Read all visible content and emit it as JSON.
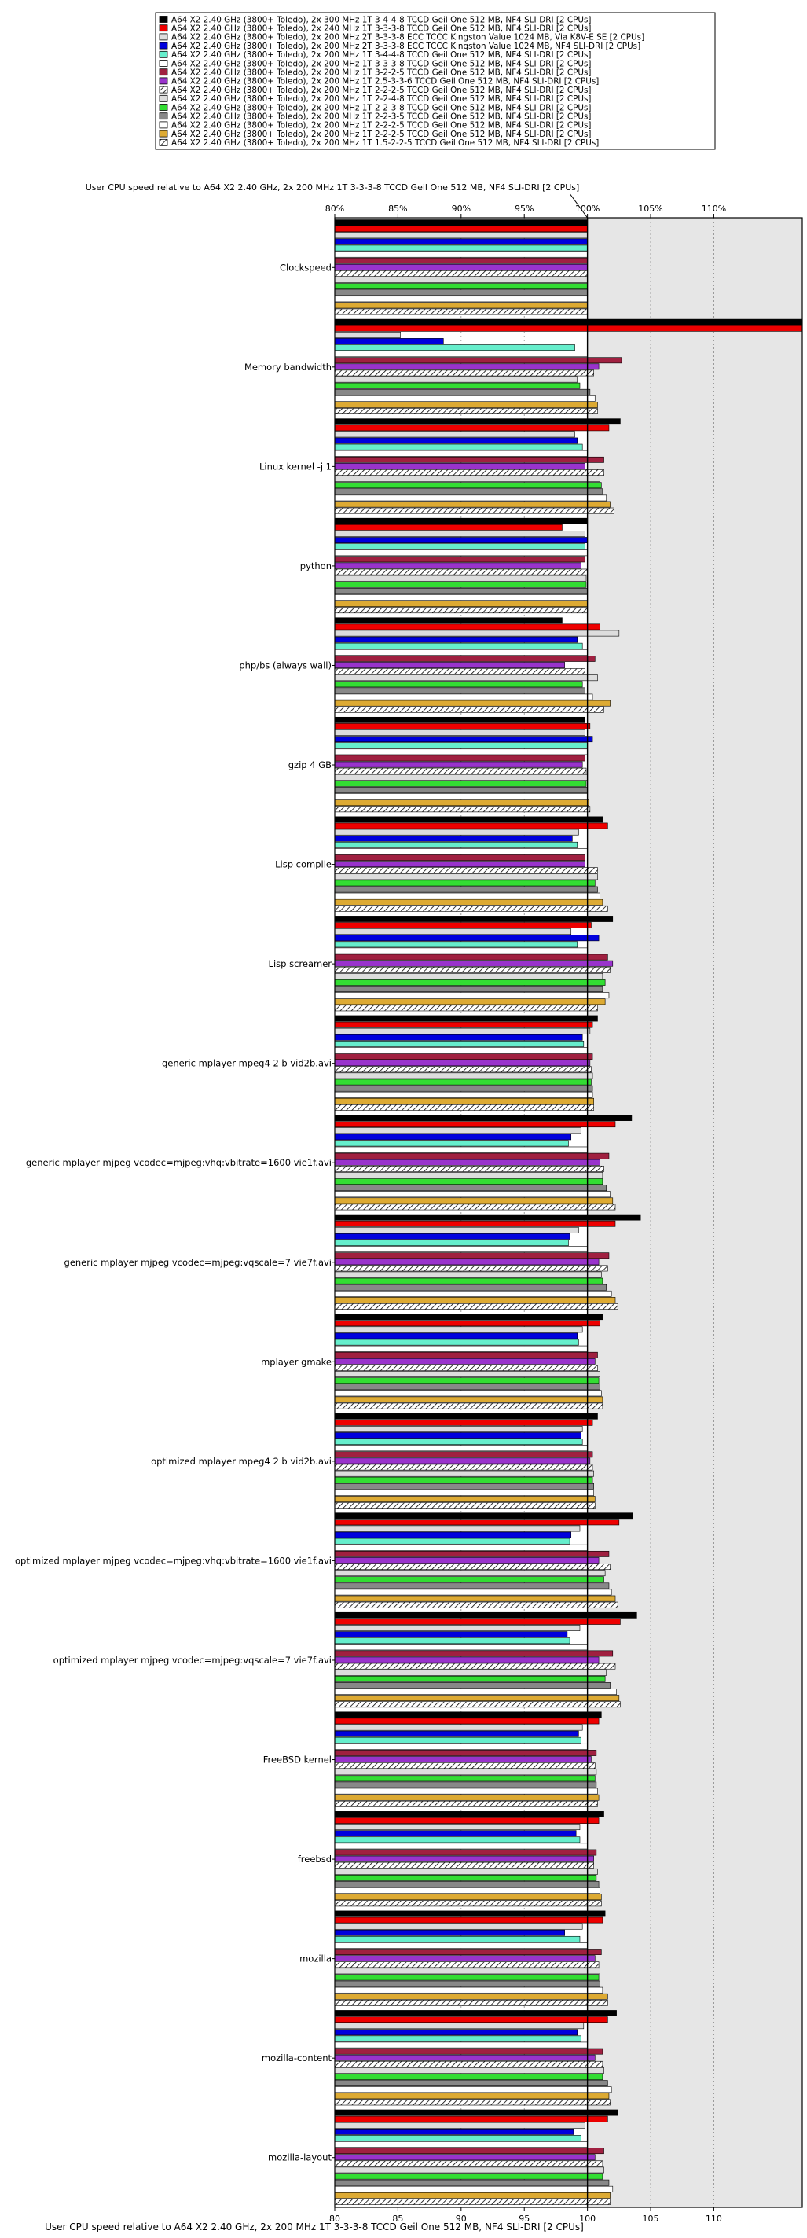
{
  "chart_data": {
    "type": "bar",
    "orientation": "horizontal",
    "title": "User CPU speed relative to A64 X2 2.40 GHz, 2x 200 MHz 1T 3-3-3-8 TCCD Geil One 512 MB, NF4 SLI-DRI [2 CPUs]",
    "xlabel": "User CPU speed relative to A64 X2 2.40 GHz, 2x 200 MHz 1T 3-3-3-8 TCCD Geil One 512 MB, NF4 SLI-DRI [2 CPUs]",
    "top_ticks": [
      "80%",
      "85%",
      "90%",
      "95%",
      "100%",
      "105%",
      "110%"
    ],
    "bottom_ticks": [
      "80",
      "85",
      "90",
      "95",
      "100",
      "105",
      "110"
    ],
    "tick_values": [
      80,
      85,
      90,
      95,
      100,
      105,
      110
    ],
    "xlim": [
      80,
      117
    ],
    "reference_value": 100,
    "grid": true,
    "legend_position": "top",
    "series": [
      {
        "name": "A64 X2 2.40 GHz (3800+ Toledo), 2x 300 MHz 1T 3-4-4-8 TCCD Geil One 512 MB, NF4 SLI-DRI [2 CPUs]",
        "color": "#000000",
        "pattern": "solid",
        "values": [
          100,
          117,
          102.6,
          100,
          98,
          99.8,
          101.2,
          102,
          100.8,
          103.5,
          104.2,
          101.2,
          100.8,
          103.6,
          103.9,
          101.1,
          101.3,
          101.4,
          102.3,
          102.4
        ]
      },
      {
        "name": "A64 X2 2.40 GHz (3800+ Toledo), 2x 240 MHz 1T 3-3-3-8 TCCD Geil One 512 MB, NF4 SLI-DRI [2 CPUs]",
        "color": "#ee0000",
        "pattern": "solid",
        "values": [
          100,
          117,
          101.7,
          98,
          101,
          100.2,
          101.6,
          100.3,
          100.4,
          102.2,
          102.2,
          101,
          100.4,
          102.5,
          102.6,
          100.9,
          100.9,
          101.2,
          101.6,
          101.6
        ]
      },
      {
        "name": "A64 X2 2.40 GHz (3800+ Toledo), 2x 200 MHz 2T 3-3-3-8 ECC TCCC Kingston Value 1024 MB, Via K8V-E SE [2 CPUs]",
        "color": "#dddddd",
        "pattern": "solid",
        "values": [
          100,
          85.2,
          99,
          99.8,
          102.5,
          99.8,
          99.3,
          98.7,
          100.2,
          99.5,
          99.3,
          99.6,
          99.6,
          99.4,
          99.4,
          99.6,
          99.4,
          99.6,
          99.7,
          99.8
        ]
      },
      {
        "name": "A64 X2 2.40 GHz (3800+ Toledo), 2x 200 MHz 2T 3-3-3-8 ECC TCCC Kingston Value 1024 MB, NF4 SLI-DRI [2 CPUs]",
        "color": "#0000dd",
        "pattern": "solid",
        "values": [
          100,
          88.6,
          99.2,
          100,
          99.2,
          100.4,
          98.8,
          100.9,
          99.6,
          98.7,
          98.6,
          99.2,
          99.5,
          98.7,
          98.4,
          99.3,
          99.1,
          98.2,
          99.2,
          98.9
        ]
      },
      {
        "name": "A64 X2 2.40 GHz (3800+ Toledo), 2x 200 MHz 1T 3-4-4-8 TCCD Geil One 512 MB, NF4 SLI-DRI [2 CPUs]",
        "color": "#66eecc",
        "pattern": "solid",
        "values": [
          100,
          99,
          99.6,
          99.8,
          99.6,
          100,
          99.2,
          99.2,
          99.7,
          98.5,
          98.5,
          99.3,
          99.6,
          98.6,
          98.6,
          99.5,
          99.4,
          99.4,
          99.5,
          99.5
        ]
      },
      {
        "name": "A64 X2 2.40 GHz (3800+ Toledo), 2x 200 MHz 1T 3-3-3-8 TCCD Geil One 512 MB, NF4 SLI-DRI [2 CPUs]",
        "color": "#ffffff",
        "pattern": "solid",
        "values": [
          100,
          100,
          100,
          100,
          100,
          100,
          100,
          100,
          100,
          100,
          100,
          100,
          100,
          100,
          100,
          100,
          100,
          100,
          100,
          100
        ]
      },
      {
        "name": "A64 X2 2.40 GHz (3800+ Toledo), 2x 200 MHz 1T 3-2-2-5 TCCD Geil One 512 MB, NF4 SLI-DRI [2 CPUs]",
        "color": "#a02040",
        "pattern": "solid",
        "values": [
          100,
          102.7,
          101.3,
          99.8,
          100.6,
          99.8,
          99.8,
          101.6,
          100.4,
          101.7,
          101.7,
          100.8,
          100.4,
          101.7,
          102,
          100.7,
          100.7,
          101.1,
          101.2,
          101.3
        ]
      },
      {
        "name": "A64 X2 2.40 GHz (3800+ Toledo), 2x 200 MHz 1T 2.5-3-3-6 TCCD Geil One 512 MB, NF4 SLI-DRI [2 CPUs]",
        "color": "#9933cc",
        "pattern": "solid",
        "values": [
          100,
          100.9,
          99.8,
          99.5,
          98.2,
          99.6,
          99.8,
          102,
          100.2,
          101,
          100.9,
          100.6,
          100.2,
          100.9,
          100.9,
          100.3,
          100.5,
          100.6,
          100.6,
          100.6
        ]
      },
      {
        "name": "A64 X2 2.40 GHz (3800+ Toledo), 2x 200 MHz 1T 2-2-2-5 TCCD Geil One 512 MB, NF4 SLI-DRI [2 CPUs]",
        "color": "#ffffff",
        "pattern": "hatch",
        "values": [
          100,
          100.5,
          101.3,
          100,
          99.8,
          99.9,
          100.8,
          101.8,
          100.3,
          101.3,
          101.6,
          100.8,
          100.4,
          101.8,
          102.2,
          100.6,
          100.5,
          100.9,
          101.2,
          101.2
        ]
      },
      {
        "name": "A64 X2 2.40 GHz (3800+ Toledo), 2x 200 MHz 1T 2-2-4-8 TCCD Geil One 512 MB, NF4 SLI-DRI [2 CPUs]",
        "color": "#dddddd",
        "pattern": "solid",
        "values": [
          100,
          99.2,
          101,
          99.9,
          100.8,
          100,
          100.8,
          101.2,
          100.4,
          101.2,
          101.1,
          101,
          100.5,
          101.4,
          101.5,
          100.7,
          100.8,
          101,
          101.3,
          101.3
        ]
      },
      {
        "name": "A64 X2 2.40 GHz (3800+ Toledo), 2x 200 MHz 1T 2-2-3-8 TCCD Geil One 512 MB, NF4 SLI-DRI [2 CPUs]",
        "color": "#33dd33",
        "pattern": "solid",
        "values": [
          100,
          99.4,
          101.1,
          99.9,
          99.6,
          99.9,
          100.6,
          101.4,
          100.3,
          101.2,
          101.2,
          100.9,
          100.4,
          101.3,
          101.4,
          100.6,
          100.7,
          100.9,
          101.2,
          101.2
        ]
      },
      {
        "name": "A64 X2 2.40 GHz (3800+ Toledo), 2x 200 MHz 1T 2-2-3-5 TCCD Geil One 512 MB, NF4 SLI-DRI [2 CPUs]",
        "color": "#888888",
        "pattern": "solid",
        "values": [
          100,
          100.2,
          101.2,
          100,
          99.8,
          100,
          100.8,
          101.2,
          100.4,
          101.5,
          101.5,
          101,
          100.5,
          101.7,
          101.8,
          100.7,
          100.9,
          101,
          101.6,
          101.7
        ]
      },
      {
        "name": "A64 X2 2.40 GHz (3800+ Toledo), 2x 200 MHz 1T 2-2-2-5 TCCD Geil One 512 MB, NF4 SLI-DRI [2 CPUs]",
        "color": "#ffffff",
        "pattern": "solid",
        "values": [
          100,
          100.6,
          101.5,
          100,
          100.4,
          100,
          101,
          101.7,
          100.4,
          101.8,
          101.9,
          101.1,
          100.5,
          101.9,
          102.3,
          100.8,
          101,
          101.2,
          101.9,
          102
        ]
      },
      {
        "name": "A64 X2 2.40 GHz (3800+ Toledo), 2x 200 MHz 1T 2-2-2-5 TCCD Geil One 512 MB, NF4 SLI-DRI [2 CPUs]",
        "color": "#ddaa33",
        "pattern": "solid",
        "values": [
          100,
          100.8,
          101.8,
          100,
          101.8,
          100.1,
          101.2,
          101.4,
          100.5,
          102,
          102.2,
          101.2,
          100.6,
          102.2,
          102.5,
          100.9,
          101.1,
          101.6,
          101.7,
          101.8
        ]
      },
      {
        "name": "A64 X2 2.40 GHz (3800+ Toledo), 2x 200 MHz 1T 1.5-2-2-5 TCCD Geil One 512 MB, NF4 SLI-DRI [2 CPUs]",
        "color": "#ffffff",
        "pattern": "hatch",
        "values": [
          100,
          100.8,
          102.1,
          100,
          101.3,
          100.2,
          101.6,
          100.8,
          100.5,
          102.2,
          102.4,
          101.2,
          100.6,
          102.4,
          102.6,
          100.8,
          101.1,
          101.6,
          101.8,
          101.8
        ]
      }
    ],
    "categories": [
      "Clockspeed",
      "Memory bandwidth",
      "Linux kernel -j 1",
      "python",
      "php/bs (always wall)",
      "gzip 4 GB",
      "Lisp compile",
      "Lisp screamer",
      "generic mplayer mpeg4 2 b vid2b.avi",
      "generic mplayer mjpeg vcodec=mjpeg:vhq:vbitrate=1600 vie1f.avi",
      "generic mplayer mjpeg vcodec=mjpeg:vqscale=7 vie7f.avi",
      "mplayer gmake",
      "optimized mplayer mpeg4 2 b vid2b.avi",
      "optimized mplayer mjpeg vcodec=mjpeg:vhq:vbitrate=1600 vie1f.avi",
      "optimized mplayer mjpeg vcodec=mjpeg:vqscale=7 vie7f.avi",
      "FreeBSD kernel",
      "freebsd",
      "mozilla",
      "mozilla-content",
      "mozilla-layout"
    ]
  }
}
